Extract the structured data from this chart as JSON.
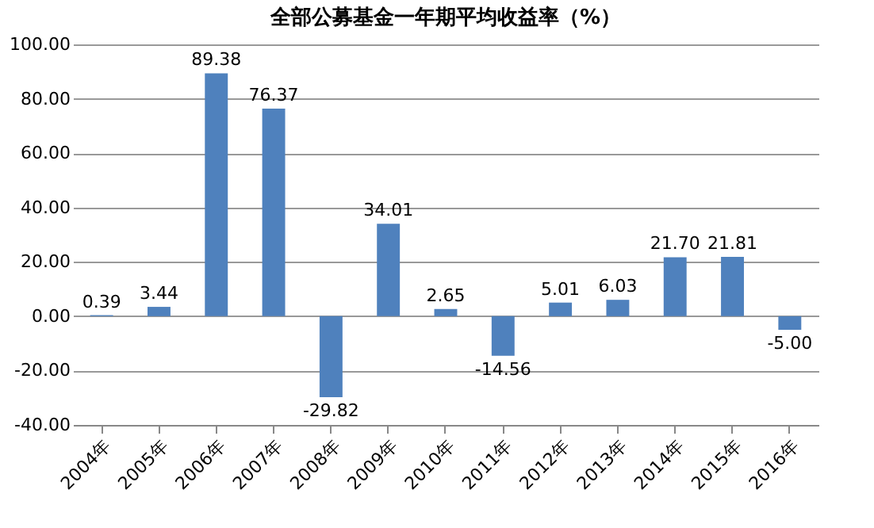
{
  "chart_data": {
    "type": "bar",
    "title": "全部公募基金一年期平均收益率（%）",
    "categories": [
      "2004年",
      "2005年",
      "2006年",
      "2007年",
      "2008年",
      "2009年",
      "2010年",
      "2011年",
      "2012年",
      "2013年",
      "2014年",
      "2015年",
      "2016年"
    ],
    "values": [
      0.39,
      3.44,
      89.38,
      76.37,
      -29.82,
      34.01,
      2.65,
      -14.56,
      5.01,
      6.03,
      21.7,
      21.81,
      -5.0
    ],
    "value_labels": [
      "0.39",
      "3.44",
      "89.38",
      "76.37",
      "-29.82",
      "34.01",
      "2.65",
      "-14.56",
      "5.01",
      "6.03",
      "21.70",
      "21.81",
      "-5.00"
    ],
    "color": "#4f81bd",
    "ylim": [
      -40,
      100
    ],
    "yticks": [
      {
        "value": -40,
        "label": "-40.00"
      },
      {
        "value": -20,
        "label": "-20.00"
      },
      {
        "value": 0,
        "label": "0.00"
      },
      {
        "value": 20,
        "label": "20.00"
      },
      {
        "value": 40,
        "label": "40.00"
      },
      {
        "value": 60,
        "label": "60.00"
      },
      {
        "value": 80,
        "label": "80.00"
      },
      {
        "value": 100,
        "label": "100.00"
      }
    ],
    "grid": "y"
  }
}
